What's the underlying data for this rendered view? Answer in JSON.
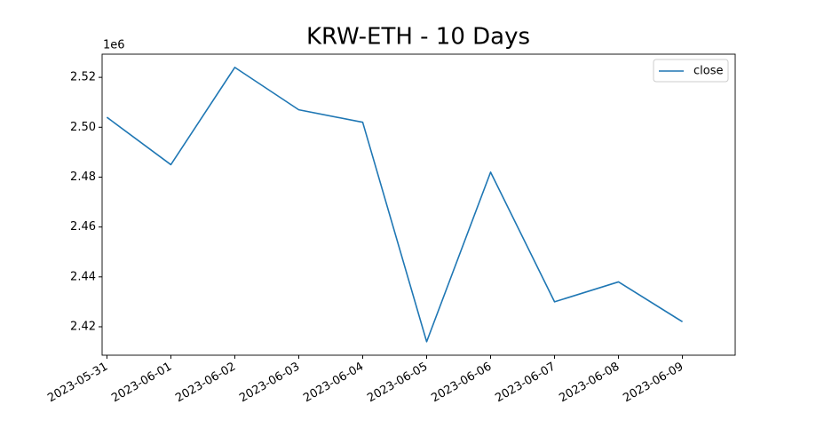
{
  "chart_data": {
    "type": "line",
    "title": "KRW-ETH - 10 Days",
    "y_offset_label": "1e6",
    "x": [
      "2023-05-31",
      "2023-06-01",
      "2023-06-02",
      "2023-06-03",
      "2023-06-04",
      "2023-06-05",
      "2023-06-06",
      "2023-06-07",
      "2023-06-08",
      "2023-06-09"
    ],
    "series": [
      {
        "name": "close",
        "color": "#1f77b4",
        "values": [
          2504000,
          2485000,
          2524000,
          2507000,
          2502000,
          2414000,
          2482000,
          2430000,
          2438000,
          2422000
        ]
      }
    ],
    "xlim": [
      "2023-05-30T22:12",
      "2023-06-09T19:48"
    ],
    "xticks": [
      "2023-05-31",
      "2023-06-01",
      "2023-06-02",
      "2023-06-03",
      "2023-06-04",
      "2023-06-05",
      "2023-06-06",
      "2023-06-07",
      "2023-06-08",
      "2023-06-09"
    ],
    "ylim": [
      2408600,
      2529300
    ],
    "yticks": [
      {
        "value": 2420000,
        "label": "2.42"
      },
      {
        "value": 2440000,
        "label": "2.44"
      },
      {
        "value": 2460000,
        "label": "2.46"
      },
      {
        "value": 2480000,
        "label": "2.48"
      },
      {
        "value": 2500000,
        "label": "2.50"
      },
      {
        "value": 2520000,
        "label": "2.52"
      }
    ],
    "legend": "upper right",
    "grid": false
  }
}
